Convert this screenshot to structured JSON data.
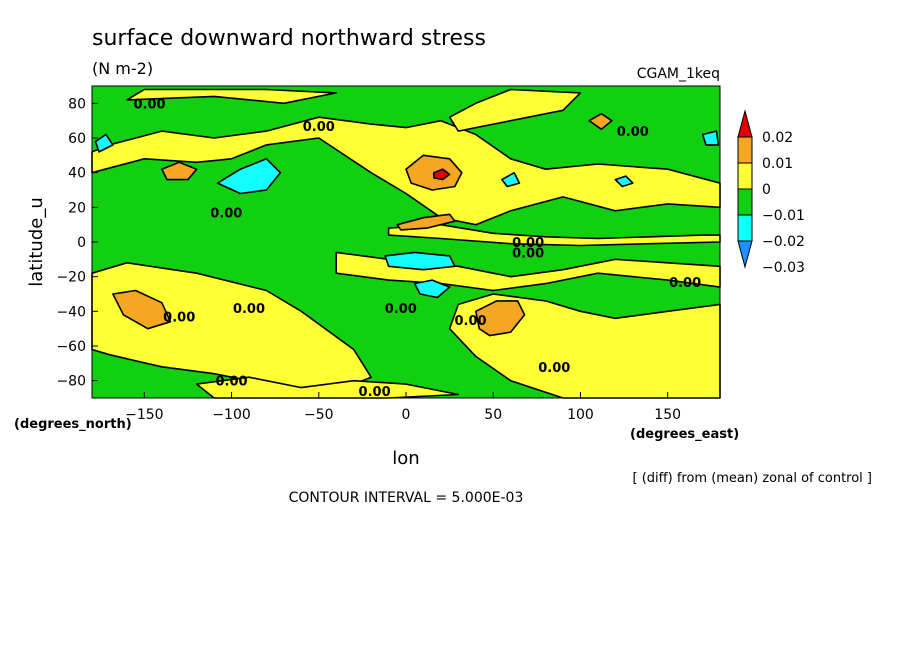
{
  "chart_data": {
    "type": "heatmap",
    "title": "surface downward northward stress",
    "units": "(N m-2)",
    "dataset_label": "CGAM_1keq",
    "xlabel": "lon",
    "ylabel": "latitude_u",
    "x_units": "(degrees_east)",
    "y_units": "(degrees_north)",
    "xlim": [
      -180,
      180
    ],
    "ylim": [
      -90,
      90
    ],
    "x_ticks": [
      -150,
      -100,
      -50,
      0,
      50,
      100,
      150
    ],
    "x_tick_labels": [
      "−150",
      "−100",
      "−50",
      "0",
      "50",
      "100",
      "150"
    ],
    "y_ticks": [
      80,
      60,
      40,
      20,
      0,
      -20,
      -40,
      -60,
      -80
    ],
    "y_tick_labels": [
      "80",
      "60",
      "40",
      "20",
      "0",
      "−20",
      "−40",
      "−60",
      "−80"
    ],
    "colorbar": {
      "levels": [
        0.02,
        0.01,
        0,
        -0.01,
        -0.02,
        -0.03
      ],
      "level_labels": [
        "0.02",
        "0.01",
        "0",
        "−0.01",
        "−0.02",
        "−0.03"
      ],
      "colors": [
        "#e00000",
        "#f5a623",
        "#ffff33",
        "#11d011",
        "#11ffff",
        "#1e90ff"
      ]
    },
    "contour_interval_note": "CONTOUR INTERVAL = 5.000E-03",
    "footnote": "[ (diff) from (mean) zonal of control ]",
    "contour_labels": [
      {
        "text": "0.00",
        "lon": -147,
        "lat": 80
      },
      {
        "text": "0.00",
        "lon": -50,
        "lat": 67
      },
      {
        "text": "0.00",
        "lon": 130,
        "lat": 64
      },
      {
        "text": "0.00",
        "lon": -103,
        "lat": 17
      },
      {
        "text": "0.00",
        "lon": 70,
        "lat": 0
      },
      {
        "text": "0.00",
        "lon": 70,
        "lat": -6
      },
      {
        "text": "0.00",
        "lon": 160,
        "lat": -23
      },
      {
        "text": "0.00",
        "lon": -130,
        "lat": -43
      },
      {
        "text": "0.00",
        "lon": -90,
        "lat": -38
      },
      {
        "text": "0.00",
        "lon": -3,
        "lat": -38
      },
      {
        "text": "0.00",
        "lon": 37,
        "lat": -45
      },
      {
        "text": "0.00",
        "lon": 85,
        "lat": -72
      },
      {
        "text": "0.00",
        "lon": -100,
        "lat": -80
      },
      {
        "text": "0.00",
        "lon": -18,
        "lat": -86
      }
    ],
    "features": [
      {
        "kind": "yellow-band",
        "path": [
          [
            -180,
            40
          ],
          [
            -150,
            48
          ],
          [
            -120,
            46
          ],
          [
            -100,
            48
          ],
          [
            -80,
            56
          ],
          [
            -50,
            60
          ],
          [
            -20,
            40
          ],
          [
            0,
            28
          ],
          [
            20,
            14
          ],
          [
            40,
            10
          ],
          [
            60,
            18
          ],
          [
            90,
            26
          ],
          [
            120,
            18
          ],
          [
            150,
            22
          ],
          [
            180,
            20
          ],
          [
            180,
            34
          ],
          [
            150,
            42
          ],
          [
            110,
            45
          ],
          [
            80,
            42
          ],
          [
            60,
            48
          ],
          [
            40,
            62
          ],
          [
            20,
            70
          ],
          [
            0,
            66
          ],
          [
            -20,
            68
          ],
          [
            -50,
            72
          ],
          [
            -80,
            64
          ],
          [
            -110,
            60
          ],
          [
            -140,
            64
          ],
          [
            -170,
            56
          ],
          [
            -180,
            52
          ]
        ]
      },
      {
        "kind": "yellow-band",
        "path": [
          [
            -10,
            8
          ],
          [
            20,
            10
          ],
          [
            50,
            5
          ],
          [
            80,
            3
          ],
          [
            110,
            2
          ],
          [
            140,
            3
          ],
          [
            170,
            4
          ],
          [
            180,
            4
          ],
          [
            180,
            0
          ],
          [
            140,
            -1
          ],
          [
            100,
            -2
          ],
          [
            60,
            -1
          ],
          [
            20,
            2
          ],
          [
            -10,
            4
          ]
        ]
      },
      {
        "kind": "yellow-band",
        "path": [
          [
            30,
            64
          ],
          [
            60,
            70
          ],
          [
            90,
            76
          ],
          [
            100,
            86
          ],
          [
            60,
            88
          ],
          [
            40,
            80
          ],
          [
            25,
            72
          ]
        ]
      },
      {
        "kind": "yellow-band",
        "path": [
          [
            -180,
            -18
          ],
          [
            -160,
            -12
          ],
          [
            -120,
            -18
          ],
          [
            -80,
            -28
          ],
          [
            -60,
            -40
          ],
          [
            -30,
            -62
          ],
          [
            -20,
            -78
          ],
          [
            -40,
            -86
          ],
          [
            -80,
            -82
          ],
          [
            -110,
            -76
          ],
          [
            -140,
            -72
          ],
          [
            -170,
            -65
          ],
          [
            -180,
            -62
          ]
        ]
      },
      {
        "kind": "yellow-band",
        "path": [
          [
            -160,
            82
          ],
          [
            -110,
            84
          ],
          [
            -70,
            80
          ],
          [
            -40,
            86
          ],
          [
            -80,
            88
          ],
          [
            -150,
            88
          ]
        ]
      },
      {
        "kind": "yellow-band",
        "path": [
          [
            -40,
            -6
          ],
          [
            -10,
            -10
          ],
          [
            30,
            -14
          ],
          [
            60,
            -20
          ],
          [
            90,
            -16
          ],
          [
            120,
            -10
          ],
          [
            150,
            -12
          ],
          [
            180,
            -14
          ],
          [
            180,
            -26
          ],
          [
            150,
            -22
          ],
          [
            110,
            -18
          ],
          [
            80,
            -24
          ],
          [
            50,
            -28
          ],
          [
            20,
            -24
          ],
          [
            -10,
            -22
          ],
          [
            -40,
            -18
          ]
        ]
      },
      {
        "kind": "yellow-band",
        "path": [
          [
            30,
            -36
          ],
          [
            50,
            -30
          ],
          [
            80,
            -34
          ],
          [
            100,
            -40
          ],
          [
            120,
            -44
          ],
          [
            150,
            -40
          ],
          [
            180,
            -36
          ],
          [
            180,
            -90
          ],
          [
            90,
            -90
          ],
          [
            60,
            -80
          ],
          [
            40,
            -66
          ],
          [
            25,
            -50
          ]
        ]
      },
      {
        "kind": "yellow-band",
        "path": [
          [
            -120,
            -82
          ],
          [
            -90,
            -78
          ],
          [
            -60,
            -84
          ],
          [
            -30,
            -80
          ],
          [
            0,
            -82
          ],
          [
            30,
            -88
          ],
          [
            -10,
            -90
          ],
          [
            -110,
            -90
          ]
        ]
      },
      {
        "kind": "orange-blob",
        "path": [
          [
            -140,
            42
          ],
          [
            -130,
            46
          ],
          [
            -120,
            42
          ],
          [
            -125,
            36
          ],
          [
            -137,
            36
          ]
        ]
      },
      {
        "kind": "orange-blob",
        "path": [
          [
            0,
            42
          ],
          [
            10,
            50
          ],
          [
            25,
            48
          ],
          [
            32,
            40
          ],
          [
            28,
            32
          ],
          [
            15,
            30
          ],
          [
            3,
            34
          ]
        ]
      },
      {
        "kind": "red-blob",
        "path": [
          [
            16,
            40
          ],
          [
            21,
            42
          ],
          [
            25,
            39
          ],
          [
            21,
            36
          ],
          [
            16,
            37
          ]
        ]
      },
      {
        "kind": "orange-blob",
        "path": [
          [
            -5,
            10
          ],
          [
            10,
            14
          ],
          [
            25,
            16
          ],
          [
            28,
            12
          ],
          [
            12,
            8
          ],
          [
            -3,
            7
          ]
        ]
      },
      {
        "kind": "orange-blob",
        "path": [
          [
            105,
            70
          ],
          [
            112,
            74
          ],
          [
            118,
            70
          ],
          [
            112,
            65
          ]
        ]
      },
      {
        "kind": "orange-blob",
        "path": [
          [
            -168,
            -30
          ],
          [
            -155,
            -28
          ],
          [
            -140,
            -35
          ],
          [
            -135,
            -46
          ],
          [
            -148,
            -50
          ],
          [
            -162,
            -42
          ]
        ]
      },
      {
        "kind": "orange-blob",
        "path": [
          [
            40,
            -40
          ],
          [
            52,
            -34
          ],
          [
            64,
            -34
          ],
          [
            68,
            -42
          ],
          [
            60,
            -52
          ],
          [
            48,
            -54
          ],
          [
            42,
            -50
          ]
        ]
      },
      {
        "kind": "cyan-blob",
        "path": [
          [
            -108,
            34
          ],
          [
            -95,
            42
          ],
          [
            -80,
            48
          ],
          [
            -72,
            40
          ],
          [
            -80,
            30
          ],
          [
            -95,
            28
          ]
        ]
      },
      {
        "kind": "cyan-blob",
        "path": [
          [
            -12,
            -8
          ],
          [
            5,
            -6
          ],
          [
            25,
            -8
          ],
          [
            28,
            -14
          ],
          [
            10,
            -16
          ],
          [
            -10,
            -14
          ]
        ]
      },
      {
        "kind": "cyan-blob",
        "path": [
          [
            5,
            -24
          ],
          [
            15,
            -22
          ],
          [
            25,
            -26
          ],
          [
            18,
            -32
          ],
          [
            8,
            -30
          ]
        ]
      },
      {
        "kind": "cyan-blob",
        "path": [
          [
            -178,
            58
          ],
          [
            -172,
            62
          ],
          [
            -168,
            56
          ],
          [
            -176,
            52
          ]
        ]
      },
      {
        "kind": "cyan-blob",
        "path": [
          [
            170,
            62
          ],
          [
            178,
            64
          ],
          [
            179,
            56
          ],
          [
            172,
            56
          ]
        ]
      },
      {
        "kind": "cyan-blob",
        "path": [
          [
            55,
            36
          ],
          [
            62,
            40
          ],
          [
            65,
            34
          ],
          [
            58,
            32
          ]
        ]
      },
      {
        "kind": "cyan-blob",
        "path": [
          [
            120,
            36
          ],
          [
            126,
            38
          ],
          [
            130,
            34
          ],
          [
            124,
            32
          ]
        ]
      }
    ]
  }
}
